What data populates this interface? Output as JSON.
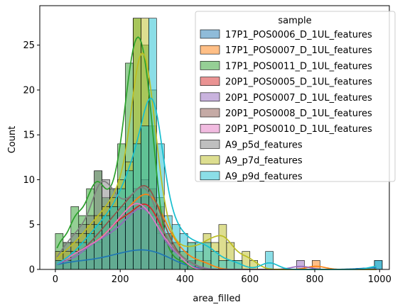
{
  "chart_data": {
    "type": "histogram",
    "xlabel": "area_filled",
    "ylabel": "Count",
    "xlim": [
      -48,
      1030
    ],
    "ylim": [
      0,
      29.4
    ],
    "xticks": [
      0,
      200,
      400,
      600,
      800,
      1000
    ],
    "yticks": [
      0,
      5,
      10,
      15,
      20,
      25
    ],
    "bin_width": 24,
    "bin_starts": [
      0,
      24,
      48,
      72,
      96,
      120,
      144,
      168,
      192,
      216,
      240,
      264,
      288,
      312,
      336,
      360,
      384,
      408,
      432,
      456,
      480,
      504,
      528,
      552,
      576,
      600,
      624,
      648,
      672,
      696,
      720,
      744,
      768,
      792,
      816,
      840,
      864,
      888,
      912,
      936,
      960,
      984
    ],
    "legend_title": "sample",
    "legend_position": "upper-right",
    "kde": true,
    "grid": false,
    "series": [
      {
        "name": "17P1_POS0006_D_1UL_features",
        "color": "#1f77b4",
        "counts": [
          1,
          1,
          1,
          1,
          1,
          1,
          1,
          2,
          2,
          2,
          2,
          3,
          3,
          2,
          1,
          1,
          0,
          0,
          0,
          0,
          0,
          0,
          0,
          0,
          0,
          0,
          0,
          0,
          0,
          0,
          0,
          0,
          0,
          0,
          0,
          0,
          0,
          0,
          0,
          0,
          0,
          1
        ]
      },
      {
        "name": "17P1_POS0007_D_1UL_features",
        "color": "#ff7f0e",
        "counts": [
          1,
          1,
          2,
          2,
          3,
          3,
          4,
          5,
          6,
          7,
          8,
          9,
          9,
          7,
          4,
          3,
          2,
          1,
          1,
          1,
          0,
          0,
          0,
          0,
          0,
          0,
          0,
          0,
          0,
          0,
          0,
          0,
          0,
          1,
          0,
          0,
          0,
          0,
          0,
          0,
          0,
          0
        ]
      },
      {
        "name": "17P1_POS0011_D_1UL_features",
        "color": "#2ca02c",
        "counts": [
          4,
          3,
          7,
          6,
          9,
          11,
          8,
          9,
          14,
          23,
          28,
          25,
          16,
          5,
          2,
          1,
          1,
          0,
          0,
          0,
          0,
          0,
          0,
          0,
          0,
          0,
          0,
          0,
          0,
          0,
          0,
          0,
          0,
          0,
          0,
          0,
          0,
          0,
          0,
          0,
          0,
          0
        ]
      },
      {
        "name": "20P1_POS0005_D_1UL_features",
        "color": "#d62728",
        "counts": [
          1,
          1,
          2,
          2,
          3,
          3,
          4,
          5,
          6,
          6,
          7,
          8,
          7,
          5,
          3,
          2,
          1,
          1,
          0,
          0,
          0,
          0,
          0,
          0,
          0,
          0,
          0,
          0,
          0,
          0,
          0,
          0,
          0,
          0,
          0,
          0,
          0,
          0,
          0,
          0,
          0,
          0
        ]
      },
      {
        "name": "20P1_POS0007_D_1UL_features",
        "color": "#9467bd",
        "counts": [
          1,
          1,
          1,
          2,
          3,
          3,
          4,
          4,
          5,
          6,
          7,
          8,
          6,
          4,
          2,
          2,
          1,
          1,
          0,
          0,
          0,
          0,
          0,
          0,
          0,
          0,
          0,
          0,
          0,
          0,
          0,
          1,
          0,
          0,
          0,
          0,
          0,
          0,
          0,
          0,
          0,
          0
        ]
      },
      {
        "name": "20P1_POS0008_D_1UL_features",
        "color": "#8c564b",
        "counts": [
          1,
          1,
          2,
          2,
          3,
          4,
          5,
          6,
          7,
          8,
          9,
          10,
          9,
          6,
          4,
          2,
          1,
          1,
          0,
          0,
          0,
          0,
          0,
          0,
          0,
          0,
          0,
          0,
          0,
          0,
          0,
          0,
          0,
          0,
          0,
          0,
          0,
          0,
          0,
          0,
          0,
          0
        ]
      },
      {
        "name": "20P1_POS0010_D_1UL_features",
        "color": "#e377c2",
        "counts": [
          1,
          1,
          2,
          2,
          3,
          3,
          4,
          5,
          6,
          7,
          8,
          7,
          6,
          4,
          3,
          2,
          1,
          0,
          0,
          0,
          0,
          0,
          0,
          0,
          0,
          0,
          0,
          0,
          0,
          0,
          0,
          0,
          0,
          0,
          0,
          0,
          0,
          0,
          0,
          0,
          0,
          0
        ]
      },
      {
        "name": "A9_p5d_features",
        "color": "#7f7f7f",
        "counts": [
          2,
          3,
          4,
          5,
          6,
          11,
          10,
          9,
          7,
          8,
          9,
          10,
          8,
          5,
          3,
          2,
          1,
          1,
          0,
          0,
          0,
          0,
          0,
          0,
          0,
          0,
          0,
          0,
          0,
          0,
          0,
          0,
          0,
          0,
          0,
          0,
          0,
          0,
          0,
          0,
          0,
          0
        ]
      },
      {
        "name": "A9_p7d_features",
        "color": "#bcbd22",
        "counts": [
          2,
          2,
          3,
          4,
          5,
          6,
          7,
          8,
          10,
          12,
          28,
          28,
          20,
          8,
          4,
          3,
          2,
          3,
          2,
          4,
          3,
          5,
          3,
          1,
          2,
          1,
          0,
          0,
          0,
          0,
          0,
          0,
          0,
          0,
          0,
          0,
          0,
          0,
          0,
          0,
          0,
          0
        ]
      },
      {
        "name": "A9_p9d_features",
        "color": "#17becf",
        "counts": [
          1,
          1,
          2,
          3,
          4,
          5,
          6,
          7,
          9,
          11,
          14,
          16,
          28,
          14,
          6,
          5,
          4,
          3,
          3,
          3,
          2,
          1,
          1,
          1,
          0,
          0,
          0,
          2,
          0,
          0,
          0,
          0,
          0,
          0,
          0,
          0,
          0,
          0,
          0,
          0,
          0,
          1
        ]
      }
    ]
  }
}
